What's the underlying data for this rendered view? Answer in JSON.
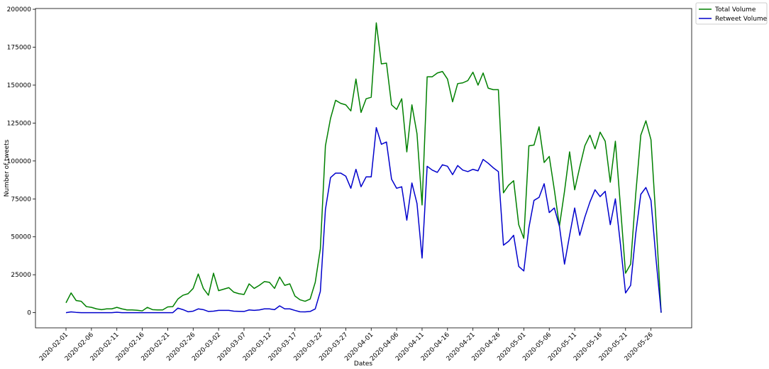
{
  "chart_data": {
    "type": "line",
    "xlabel": "Dates",
    "ylabel": "Number of tweets",
    "legend": "upper right outside",
    "x": [
      "2020-02-01",
      "2020-02-02",
      "2020-02-03",
      "2020-02-04",
      "2020-02-05",
      "2020-02-06",
      "2020-02-07",
      "2020-02-08",
      "2020-02-09",
      "2020-02-10",
      "2020-02-11",
      "2020-02-12",
      "2020-02-13",
      "2020-02-14",
      "2020-02-15",
      "2020-02-16",
      "2020-02-17",
      "2020-02-18",
      "2020-02-19",
      "2020-02-20",
      "2020-02-21",
      "2020-02-22",
      "2020-02-23",
      "2020-02-24",
      "2020-02-25",
      "2020-02-26",
      "2020-02-27",
      "2020-02-28",
      "2020-02-29",
      "2020-03-01",
      "2020-03-02",
      "2020-03-03",
      "2020-03-04",
      "2020-03-05",
      "2020-03-06",
      "2020-03-07",
      "2020-03-08",
      "2020-03-09",
      "2020-03-10",
      "2020-03-11",
      "2020-03-12",
      "2020-03-13",
      "2020-03-14",
      "2020-03-15",
      "2020-03-16",
      "2020-03-17",
      "2020-03-18",
      "2020-03-19",
      "2020-03-20",
      "2020-03-21",
      "2020-03-22",
      "2020-03-23",
      "2020-03-24",
      "2020-03-25",
      "2020-03-26",
      "2020-03-27",
      "2020-03-28",
      "2020-03-29",
      "2020-03-30",
      "2020-03-31",
      "2020-04-01",
      "2020-04-02",
      "2020-04-03",
      "2020-04-04",
      "2020-04-05",
      "2020-04-06",
      "2020-04-07",
      "2020-04-08",
      "2020-04-09",
      "2020-04-10",
      "2020-04-11",
      "2020-04-12",
      "2020-04-13",
      "2020-04-14",
      "2020-04-15",
      "2020-04-16",
      "2020-04-17",
      "2020-04-18",
      "2020-04-19",
      "2020-04-20",
      "2020-04-21",
      "2020-04-22",
      "2020-04-23",
      "2020-04-24",
      "2020-04-25",
      "2020-04-26",
      "2020-04-27",
      "2020-04-28",
      "2020-04-29",
      "2020-04-30",
      "2020-05-01",
      "2020-05-02",
      "2020-05-03",
      "2020-05-04",
      "2020-05-05",
      "2020-05-06",
      "2020-05-07",
      "2020-05-08",
      "2020-05-09",
      "2020-05-10",
      "2020-05-11",
      "2020-05-12",
      "2020-05-13",
      "2020-05-14",
      "2020-05-15",
      "2020-05-16",
      "2020-05-17",
      "2020-05-18",
      "2020-05-19",
      "2020-05-20",
      "2020-05-21",
      "2020-05-22",
      "2020-05-23",
      "2020-05-24",
      "2020-05-25",
      "2020-05-26",
      "2020-05-27",
      "2020-05-28"
    ],
    "series": [
      {
        "name": "Total Volume",
        "color": "#008000",
        "values": [
          6500,
          13000,
          8000,
          7500,
          4000,
          3500,
          2500,
          2000,
          2500,
          2500,
          3500,
          2500,
          1800,
          1800,
          1600,
          1200,
          3500,
          2000,
          1800,
          1800,
          3800,
          4000,
          9000,
          11500,
          12500,
          16000,
          25500,
          16000,
          11500,
          26000,
          14500,
          15500,
          16500,
          13500,
          12500,
          12000,
          19000,
          16000,
          18000,
          20500,
          20000,
          16000,
          23500,
          18000,
          19000,
          11000,
          8500,
          7500,
          9000,
          20000,
          42000,
          110000,
          128000,
          140000,
          138000,
          137000,
          133000,
          154000,
          132000,
          141000,
          142000,
          191000,
          164000,
          164500,
          137000,
          134000,
          141000,
          106000,
          137000,
          118000,
          71000,
          155500,
          155500,
          158000,
          159000,
          154000,
          139000,
          151000,
          151500,
          153000,
          158500,
          150000,
          158000,
          148000,
          147000,
          147000,
          79000,
          84000,
          87000,
          58000,
          49000,
          110000,
          110500,
          122500,
          99000,
          103000,
          81000,
          57000,
          80000,
          106000,
          81000,
          96000,
          110000,
          117000,
          108000,
          119000,
          113000,
          86000,
          113000,
          70000,
          26000,
          32000,
          78000,
          117000,
          126500,
          114000,
          60000,
          0
        ]
      },
      {
        "name": "Retweet Volume",
        "color": "#0000cc",
        "values": [
          0,
          500,
          200,
          0,
          0,
          0,
          0,
          0,
          0,
          0,
          300,
          0,
          0,
          0,
          0,
          0,
          0,
          0,
          0,
          0,
          0,
          0,
          3000,
          2000,
          600,
          1000,
          2500,
          2000,
          800,
          1000,
          1500,
          1500,
          1500,
          1000,
          900,
          800,
          1800,
          1500,
          1800,
          2500,
          2500,
          2000,
          4500,
          2500,
          2500,
          1500,
          600,
          500,
          800,
          2500,
          14000,
          68000,
          89000,
          92000,
          92000,
          90000,
          82000,
          94500,
          83000,
          89500,
          89500,
          122000,
          111000,
          112500,
          88000,
          82000,
          83000,
          61000,
          85500,
          72000,
          36000,
          96500,
          94000,
          92500,
          97500,
          96500,
          91000,
          97000,
          94000,
          93000,
          94500,
          93500,
          101000,
          98500,
          95500,
          93000,
          44500,
          47000,
          51000,
          30500,
          27500,
          56000,
          74000,
          76000,
          85000,
          66000,
          69000,
          57000,
          32000,
          51000,
          69000,
          51000,
          63000,
          73000,
          81000,
          76500,
          80000,
          58000,
          75000,
          45000,
          13000,
          18000,
          52000,
          78000,
          82500,
          74000,
          35000,
          0
        ]
      }
    ],
    "xlim": [
      "2020-01-26",
      "2020-06-03"
    ],
    "xticks": [
      "2020-02-01",
      "2020-02-06",
      "2020-02-11",
      "2020-02-16",
      "2020-02-21",
      "2020-02-26",
      "2020-03-02",
      "2020-03-07",
      "2020-03-12",
      "2020-03-17",
      "2020-03-22",
      "2020-03-27",
      "2020-04-01",
      "2020-04-06",
      "2020-04-11",
      "2020-04-16",
      "2020-04-21",
      "2020-04-26",
      "2020-05-01",
      "2020-05-06",
      "2020-05-11",
      "2020-05-16",
      "2020-05-21",
      "2020-05-26"
    ],
    "ylim": [
      -10000,
      200500
    ],
    "yticks": [
      0,
      25000,
      50000,
      75000,
      100000,
      125000,
      150000,
      175000,
      200000
    ],
    "grid": false
  }
}
